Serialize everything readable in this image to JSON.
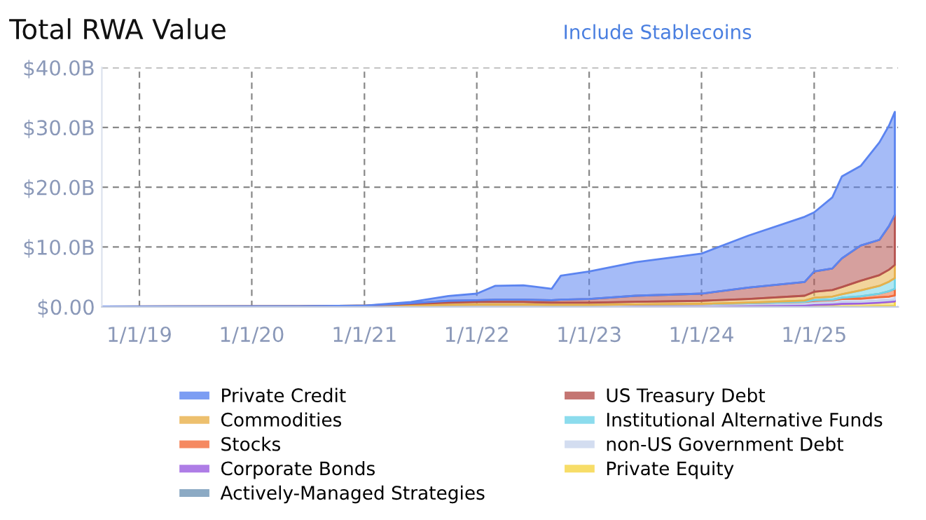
{
  "chart_data": {
    "type": "area",
    "stacked": true,
    "title": "Total RWA Value",
    "annotations": [
      "Include Stablecoins"
    ],
    "x": [
      "2018-09-01",
      "2019-06-01",
      "2020-06-01",
      "2021-01-01",
      "2021-06-01",
      "2021-10-01",
      "2022-01-01",
      "2022-03-01",
      "2022-06-01",
      "2022-09-01",
      "2022-10-01",
      "2023-01-01",
      "2023-06-01",
      "2024-01-01",
      "2024-06-01",
      "2024-12-01",
      "2025-01-01",
      "2025-03-01",
      "2025-04-01",
      "2025-06-01",
      "2025-08-01",
      "2025-09-01",
      "2025-09-20"
    ],
    "series": [
      {
        "name": "Actively-Managed Strategies",
        "color": "#6f95b5",
        "values": [
          0,
          0,
          0,
          0,
          0,
          0,
          0,
          0,
          0,
          0,
          0,
          0,
          0,
          0,
          0,
          0,
          0,
          0,
          0,
          0.05,
          0.1,
          0.1,
          0.1
        ]
      },
      {
        "name": "Private Equity",
        "color": "#f5d442",
        "values": [
          0,
          0,
          0,
          0,
          0,
          0,
          0,
          0,
          0,
          0,
          0,
          0,
          0.05,
          0.05,
          0.1,
          0.2,
          0.3,
          0.4,
          0.5,
          0.5,
          0.6,
          0.7,
          0.8
        ]
      },
      {
        "name": "Corporate Bonds",
        "color": "#9a5ce0",
        "values": [
          0.02,
          0.03,
          0.04,
          0.1,
          0.15,
          0.2,
          0.25,
          0.25,
          0.25,
          0.2,
          0.2,
          0.2,
          0.25,
          0.25,
          0.3,
          0.3,
          0.3,
          0.3,
          0.3,
          0.3,
          0.3,
          0.3,
          0.3
        ]
      },
      {
        "name": "non-US Government Debt",
        "color": "#c8d4ec",
        "values": [
          0,
          0,
          0,
          0,
          0.05,
          0.1,
          0.1,
          0.1,
          0.1,
          0.1,
          0.1,
          0.1,
          0.1,
          0.15,
          0.2,
          0.3,
          0.4,
          0.4,
          0.5,
          0.5,
          0.6,
          0.6,
          0.7
        ]
      },
      {
        "name": "Stocks",
        "color": "#f26b3a",
        "values": [
          0,
          0,
          0,
          0,
          0,
          0,
          0,
          0,
          0,
          0,
          0,
          0,
          0,
          0,
          0,
          0.05,
          0.1,
          0.1,
          0.2,
          0.4,
          0.6,
          0.9,
          1.1
        ]
      },
      {
        "name": "Institutional Alternative Funds",
        "color": "#6fd3e8",
        "values": [
          0,
          0,
          0,
          0,
          0,
          0,
          0,
          0,
          0,
          0,
          0,
          0,
          0,
          0.05,
          0.1,
          0.2,
          0.4,
          0.5,
          0.6,
          1.0,
          1.3,
          1.6,
          1.8
        ]
      },
      {
        "name": "Commodities",
        "color": "#e8b04a",
        "values": [
          0.03,
          0.05,
          0.06,
          0.1,
          0.3,
          0.4,
          0.45,
          0.45,
          0.45,
          0.4,
          0.4,
          0.4,
          0.45,
          0.5,
          0.6,
          0.8,
          1.0,
          1.1,
          1.2,
          1.6,
          1.8,
          2.0,
          2.2
        ]
      },
      {
        "name": "US Treasury Debt",
        "color": "#b5524f",
        "values": [
          0,
          0,
          0,
          0,
          0.1,
          0.3,
          0.3,
          0.4,
          0.4,
          0.4,
          0.5,
          0.6,
          1.0,
          1.2,
          1.9,
          2.3,
          3.4,
          3.6,
          4.8,
          5.9,
          5.9,
          7.3,
          8.4
        ]
      },
      {
        "name": "Private Credit",
        "color": "#5b84f0",
        "values": [
          0,
          0,
          0,
          0,
          0.2,
          0.8,
          1.1,
          2.3,
          2.4,
          1.9,
          4.0,
          4.6,
          5.6,
          6.7,
          8.7,
          10.9,
          9.9,
          11.9,
          13.7,
          13.3,
          16.3,
          16.8,
          17.2
        ]
      }
    ],
    "xlim": [
      "2018-09-01",
      "2025-10-01"
    ],
    "xticks": [
      {
        "value": "2019-01-01",
        "label": "1/1/19"
      },
      {
        "value": "2020-01-01",
        "label": "1/1/20"
      },
      {
        "value": "2021-01-01",
        "label": "1/1/21"
      },
      {
        "value": "2022-01-01",
        "label": "1/1/22"
      },
      {
        "value": "2023-01-01",
        "label": "1/1/23"
      },
      {
        "value": "2024-01-01",
        "label": "1/1/24"
      },
      {
        "value": "2025-01-01",
        "label": "1/1/25"
      }
    ],
    "ylim": [
      0,
      40
    ],
    "yticks": [
      {
        "value": 0,
        "label": "$0.00"
      },
      {
        "value": 10,
        "label": "$10.0B"
      },
      {
        "value": 20,
        "label": "$20.0B"
      },
      {
        "value": 30,
        "label": "$30.0B"
      },
      {
        "value": 40,
        "label": "$40.0B"
      }
    ],
    "grid": true,
    "legend": "bottom",
    "line_style": "solid"
  }
}
